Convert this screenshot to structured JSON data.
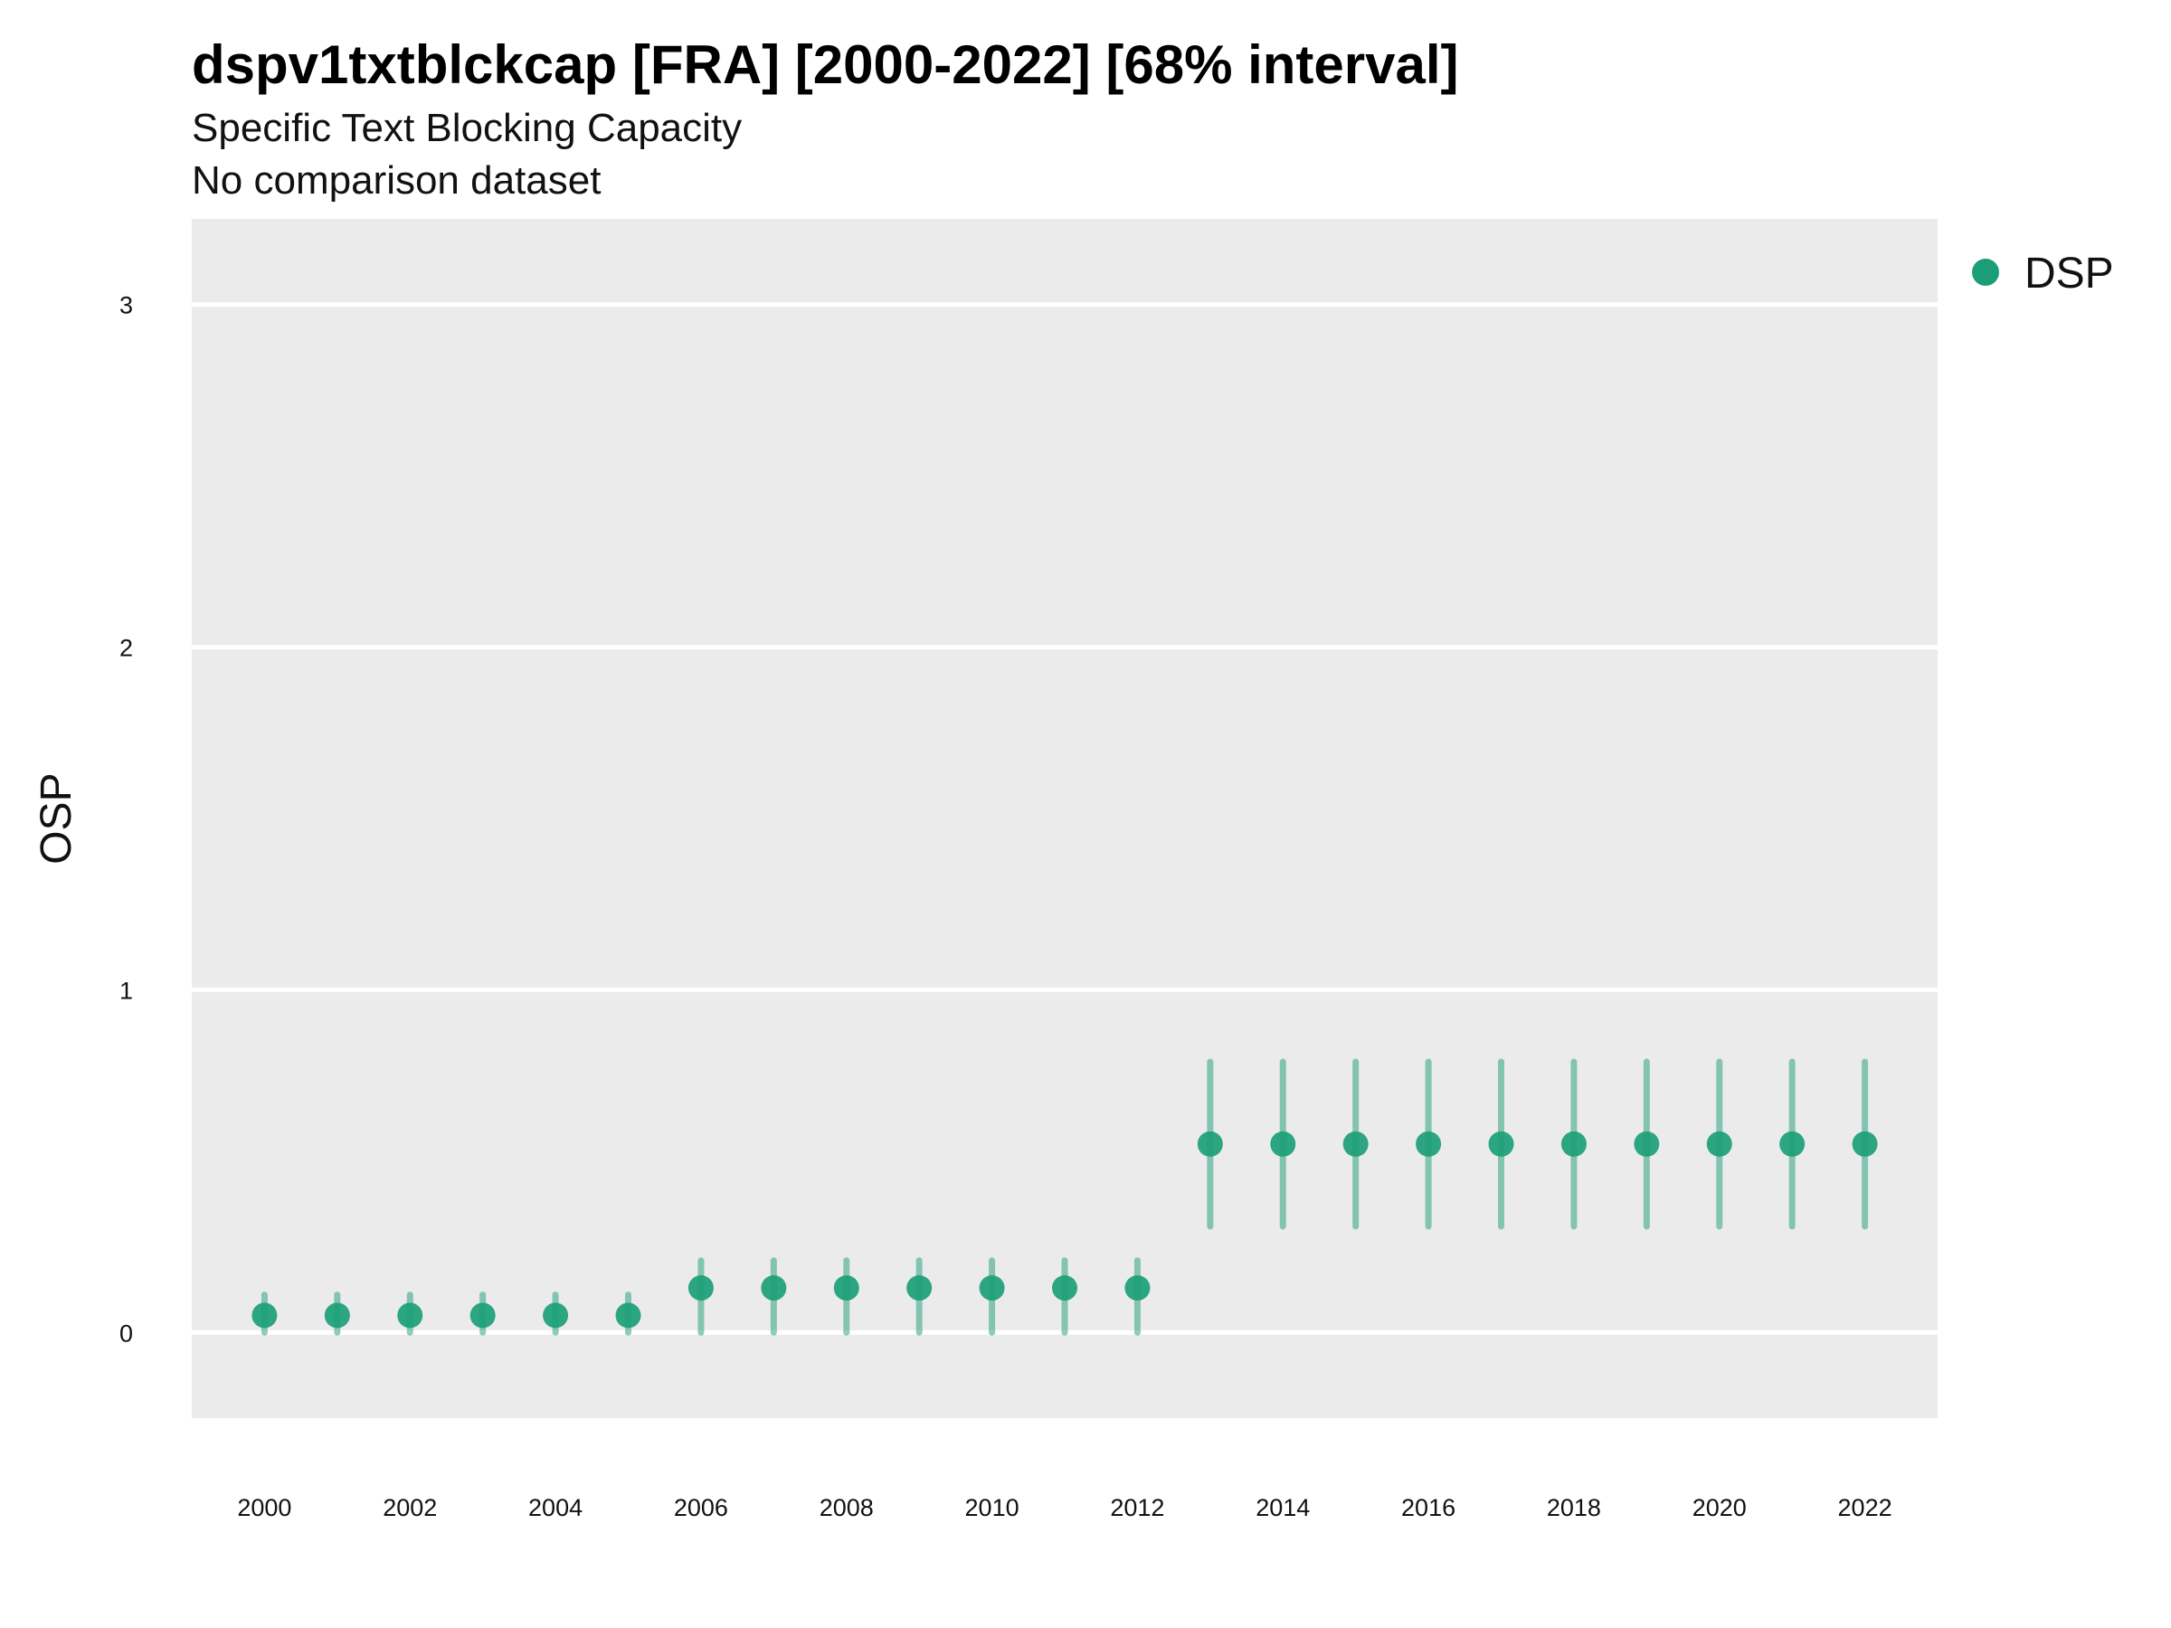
{
  "chart_data": {
    "type": "scatter",
    "title": "dspv1txtblckcap [FRA] [2000-2022] [68% interval]",
    "subtitle": "Specific Text Blocking Capacity",
    "subtitle2": "No comparison dataset",
    "xlabel": "",
    "ylabel": "OSP",
    "xlim": [
      1999,
      2023
    ],
    "ylim": [
      -0.25,
      3.25
    ],
    "x_ticks": [
      "2000",
      "2002",
      "2004",
      "2006",
      "2008",
      "2010",
      "2012",
      "2014",
      "2016",
      "2018",
      "2020",
      "2022"
    ],
    "y_ticks": [
      "0",
      "1",
      "2",
      "3"
    ],
    "grid": true,
    "legend_position": "top-right",
    "series": [
      {
        "name": "DSP",
        "color": "#1b9e77",
        "x": [
          2000,
          2001,
          2002,
          2003,
          2004,
          2005,
          2006,
          2007,
          2008,
          2009,
          2010,
          2011,
          2012,
          2013,
          2014,
          2015,
          2016,
          2017,
          2018,
          2019,
          2020,
          2021,
          2022
        ],
        "y": [
          0.05,
          0.05,
          0.05,
          0.05,
          0.05,
          0.05,
          0.13,
          0.13,
          0.13,
          0.13,
          0.13,
          0.13,
          0.13,
          0.55,
          0.55,
          0.55,
          0.55,
          0.55,
          0.55,
          0.55,
          0.55,
          0.55,
          0.55
        ],
        "lower": [
          0.0,
          0.0,
          0.0,
          0.0,
          0.0,
          0.0,
          0.0,
          0.0,
          0.0,
          0.0,
          0.0,
          0.0,
          0.0,
          0.31,
          0.31,
          0.31,
          0.31,
          0.31,
          0.31,
          0.31,
          0.31,
          0.31,
          0.31
        ],
        "upper": [
          0.11,
          0.11,
          0.11,
          0.11,
          0.11,
          0.11,
          0.21,
          0.21,
          0.21,
          0.21,
          0.21,
          0.21,
          0.21,
          0.79,
          0.79,
          0.79,
          0.79,
          0.79,
          0.79,
          0.79,
          0.79,
          0.79,
          0.79
        ]
      }
    ]
  }
}
